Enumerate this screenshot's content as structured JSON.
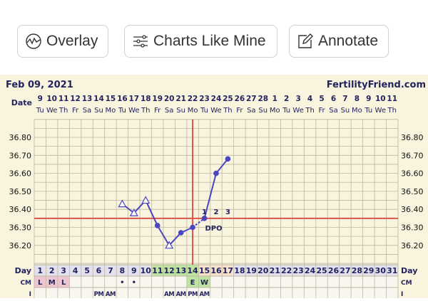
{
  "toolbar": {
    "overlay_label": "Overlay",
    "charts_like_mine_label": "Charts Like Mine",
    "annotate_label": "Annotate"
  },
  "chart_header": {
    "date": "Feb 09, 2021",
    "brand": "FertilityFriend.com"
  },
  "chart_data": {
    "type": "line",
    "row_labels": {
      "date": "Date",
      "day": "Day",
      "cm": "CM",
      "i": "I"
    },
    "dates": [
      "9",
      "10",
      "11",
      "12",
      "13",
      "14",
      "15",
      "16",
      "17",
      "18",
      "19",
      "20",
      "21",
      "22",
      "23",
      "24",
      "25",
      "26",
      "27",
      "28",
      "1",
      "2",
      "3",
      "4",
      "5",
      "6",
      "7",
      "8",
      "9",
      "10",
      "11"
    ],
    "weekdays": [
      "Tu",
      "We",
      "Th",
      "Fr",
      "Sa",
      "Su",
      "Mo",
      "Tu",
      "We",
      "Th",
      "Fr",
      "Sa",
      "Su",
      "Mo",
      "Tu",
      "We",
      "Th",
      "Fr",
      "Sa",
      "Su",
      "Mo",
      "Tu",
      "We",
      "Th",
      "Fr",
      "Sa",
      "Su",
      "Mo",
      "Tu",
      "We",
      "Th"
    ],
    "days": [
      1,
      2,
      3,
      4,
      5,
      6,
      7,
      8,
      9,
      10,
      11,
      12,
      13,
      14,
      15,
      16,
      17,
      18,
      19,
      20,
      21,
      22,
      23,
      24,
      25,
      26,
      27,
      28,
      29,
      30,
      31
    ],
    "y_ticks": [
      "36.80",
      "36.70",
      "36.60",
      "36.50",
      "36.40",
      "36.30",
      "36.20"
    ],
    "ylim": [
      36.1,
      36.9
    ],
    "temperatures": [
      {
        "day": 8,
        "value": 36.43,
        "marker": "open-triangle"
      },
      {
        "day": 9,
        "value": 36.38,
        "marker": "open-triangle"
      },
      {
        "day": 10,
        "value": 36.45,
        "marker": "open-triangle"
      },
      {
        "day": 11,
        "value": 36.31,
        "marker": "dot"
      },
      {
        "day": 12,
        "value": 36.2,
        "marker": "open-triangle"
      },
      {
        "day": 13,
        "value": 36.27,
        "marker": "dot"
      },
      {
        "day": 14,
        "value": 36.3,
        "marker": "dot"
      },
      {
        "day": 15,
        "value": 36.35,
        "marker": "dot"
      },
      {
        "day": 16,
        "value": 36.6,
        "marker": "dot"
      },
      {
        "day": 17,
        "value": 36.68,
        "marker": "dot"
      }
    ],
    "coverline": 36.35,
    "ovulation_day": 14,
    "dpo_labels": [
      {
        "day": 15,
        "label": "1"
      },
      {
        "day": 16,
        "label": "2"
      },
      {
        "day": 17,
        "label": "3"
      }
    ],
    "dpo_text": "DPO",
    "fertile_days": [
      11,
      12,
      13,
      14
    ],
    "post_ovulation_days": [
      15,
      16,
      17
    ],
    "cm": [
      {
        "day": 1,
        "value": "L",
        "color": "#efc6d0"
      },
      {
        "day": 2,
        "value": "M",
        "color": "#efc6d0"
      },
      {
        "day": 3,
        "value": "L",
        "color": "#efc6d0"
      },
      {
        "day": 8,
        "value": "•"
      },
      {
        "day": 9,
        "value": "•"
      },
      {
        "day": 14,
        "value": "E",
        "color": "#bfe3a0"
      },
      {
        "day": 15,
        "value": "W",
        "color": "#bfe3a0"
      }
    ],
    "intercourse": [
      {
        "day": 6,
        "value": "PM"
      },
      {
        "day": 7,
        "value": "AM"
      },
      {
        "day": 12,
        "value": "AM"
      },
      {
        "day": 13,
        "value": "AM"
      },
      {
        "day": 14,
        "value": "PM"
      },
      {
        "day": 15,
        "value": "AM"
      }
    ],
    "colors": {
      "line": "#4b45c0",
      "grid": "#bdb7a0",
      "red": "#d9534f",
      "text": "#23235f",
      "day_row": "#e3e1ee",
      "fertile": "#bfe3a0",
      "post": "#f6e2cc"
    }
  }
}
